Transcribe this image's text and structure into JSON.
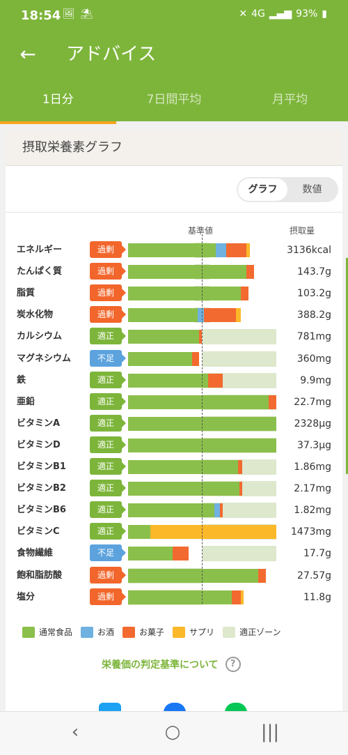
{
  "status": {
    "time": "18:54",
    "left_icons": [
      "🖼",
      "⛱"
    ],
    "battery": "93%",
    "signal_label": "4G"
  },
  "appbar": {
    "title": "アドバイス"
  },
  "tabs": [
    {
      "label": "1日分",
      "active": true
    },
    {
      "label": "7日間平均",
      "active": false
    },
    {
      "label": "月平均",
      "active": false
    }
  ],
  "card": {
    "title": "摂取栄養素グラフ",
    "toggle": {
      "graph": "グラフ",
      "values": "数値"
    },
    "col_baseline": "基準値",
    "col_intake": "摂取量"
  },
  "colors": {
    "normal": "#8bbf4b",
    "alcohol": "#6fb1e0",
    "snacks": "#f26a30",
    "supplement": "#fbb829",
    "zone": "#dde8cc",
    "badge_excess": "#f2662c",
    "badge_ok": "#7db53b",
    "badge_short": "#5ca3de"
  },
  "chart_data": {
    "type": "bar",
    "baseline_fraction": 0.5,
    "rows": [
      {
        "name": "エネルギー",
        "status": "過剰",
        "status_type": "excess",
        "value": "3136kcal",
        "segments": {
          "normal": 0.59,
          "alcohol": 0.07,
          "snacks": 0.14,
          "supplement": 0.02
        },
        "zone": [
          0.45,
          0.55
        ]
      },
      {
        "name": "たんぱく質",
        "status": "過剰",
        "status_type": "excess",
        "value": "143.7g",
        "segments": {
          "normal": 0.8,
          "snacks": 0.05
        },
        "zone": [
          0.45,
          0.55
        ]
      },
      {
        "name": "脂質",
        "status": "過剰",
        "status_type": "excess",
        "value": "103.2g",
        "segments": {
          "normal": 0.76,
          "snacks": 0.05
        },
        "zone": [
          0.45,
          0.55
        ]
      },
      {
        "name": "炭水化物",
        "status": "過剰",
        "status_type": "excess",
        "value": "388.2g",
        "segments": {
          "normal": 0.47,
          "alcohol": 0.04,
          "snacks": 0.22,
          "supplement": 0.03
        },
        "zone": [
          0.45,
          0.55
        ]
      },
      {
        "name": "カルシウム",
        "status": "適正",
        "status_type": "ok",
        "value": "781mg",
        "segments": {
          "normal": 0.48,
          "snacks": 0.02
        },
        "zone": [
          0.5,
          1.0
        ]
      },
      {
        "name": "マグネシウム",
        "status": "不足",
        "status_type": "short",
        "value": "360mg",
        "segments": {
          "normal": 0.43,
          "snacks": 0.05
        },
        "zone": [
          0.5,
          1.0
        ]
      },
      {
        "name": "鉄",
        "status": "適正",
        "status_type": "ok",
        "value": "9.9mg",
        "segments": {
          "normal": 0.54,
          "snacks": 0.1
        },
        "zone": [
          0.5,
          1.0
        ]
      },
      {
        "name": "亜鉛",
        "status": "適正",
        "status_type": "ok",
        "value": "22.7mg",
        "segments": {
          "normal": 0.95,
          "snacks": 0.05
        },
        "zone": [
          0.5,
          1.0
        ]
      },
      {
        "name": "ビタミンA",
        "status": "適正",
        "status_type": "ok",
        "value": "2328μg",
        "segments": {
          "normal": 1.0
        },
        "zone": [
          0.5,
          1.0
        ]
      },
      {
        "name": "ビタミンD",
        "status": "適正",
        "status_type": "ok",
        "value": "37.3μg",
        "segments": {
          "normal": 1.0
        },
        "zone": [
          0.5,
          1.0
        ]
      },
      {
        "name": "ビタミンB1",
        "status": "適正",
        "status_type": "ok",
        "value": "1.86mg",
        "segments": {
          "normal": 0.74,
          "snacks": 0.03
        },
        "zone": [
          0.5,
          1.0
        ]
      },
      {
        "name": "ビタミンB2",
        "status": "適正",
        "status_type": "ok",
        "value": "2.17mg",
        "segments": {
          "normal": 0.75,
          "snacks": 0.02
        },
        "zone": [
          0.5,
          1.0
        ]
      },
      {
        "name": "ビタミンB6",
        "status": "適正",
        "status_type": "ok",
        "value": "1.82mg",
        "segments": {
          "normal": 0.58,
          "alcohol": 0.04,
          "snacks": 0.02
        },
        "zone": [
          0.5,
          1.0
        ]
      },
      {
        "name": "ビタミンC",
        "status": "適正",
        "status_type": "ok",
        "value": "1473mg",
        "segments": {
          "normal": 0.15,
          "supplement": 0.85
        },
        "zone": [
          0.5,
          1.0
        ]
      },
      {
        "name": "食物繊維",
        "status": "不足",
        "status_type": "short",
        "value": "17.7g",
        "segments": {
          "normal": 0.3,
          "snacks": 0.11
        },
        "zone": [
          0.5,
          1.0
        ]
      },
      {
        "name": "飽和脂肪酸",
        "status": "過剰",
        "status_type": "excess",
        "value": "27.57g",
        "segments": {
          "normal": 0.88,
          "snacks": 0.05
        },
        "zone": [
          0.0,
          0.5
        ]
      },
      {
        "name": "塩分",
        "status": "過剰",
        "status_type": "excess",
        "value": "11.8g",
        "segments": {
          "normal": 0.7,
          "snacks": 0.06,
          "supplement": 0.02
        },
        "zone": [
          0.0,
          0.5
        ]
      }
    ],
    "legend": [
      {
        "key": "normal",
        "label": "通常食品"
      },
      {
        "key": "alcohol",
        "label": "お酒"
      },
      {
        "key": "snacks",
        "label": "お菓子"
      },
      {
        "key": "supplement",
        "label": "サプリ"
      },
      {
        "key": "zone",
        "label": "適正ゾーン"
      }
    ]
  },
  "criteria_link": "栄養価の判定基準について",
  "help_icon_glyph": "?",
  "back_glyph": "←",
  "nav": {
    "back": "‹",
    "home": "○",
    "recent": "|||"
  }
}
